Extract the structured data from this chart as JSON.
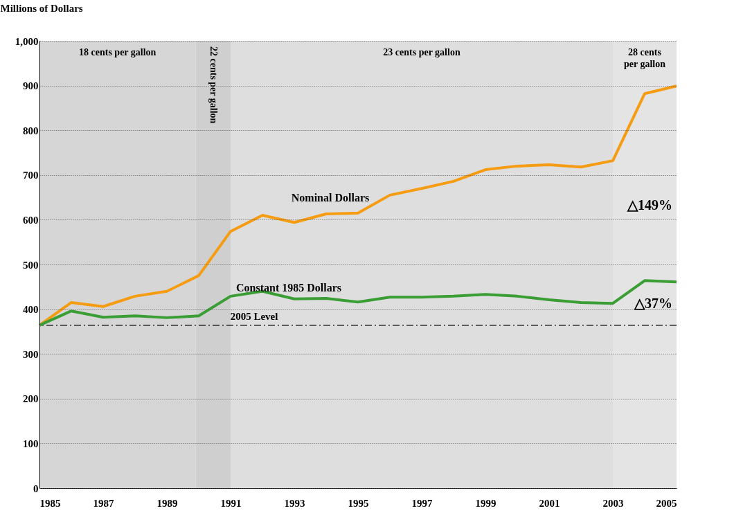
{
  "chart_data": {
    "type": "line",
    "ylabel": "Millions of Dollars",
    "x": [
      1985,
      1986,
      1987,
      1988,
      1989,
      1990,
      1991,
      1992,
      1993,
      1994,
      1995,
      1996,
      1997,
      1998,
      1999,
      2000,
      2001,
      2002,
      2003,
      2004,
      2005
    ],
    "series": [
      {
        "name": "Nominal Dollars",
        "color": "#f59c12",
        "values": [
          364,
          415,
          406,
          429,
          440,
          475,
          574,
          610,
          594,
          613,
          615,
          655,
          670,
          686,
          712,
          720,
          723,
          718,
          732,
          882,
          899
        ]
      },
      {
        "name": "Constant 1985 Dollars",
        "color": "#3a9e35",
        "values": [
          364,
          396,
          382,
          385,
          381,
          385,
          429,
          440,
          423,
          424,
          416,
          427,
          427,
          429,
          433,
          429,
          421,
          415,
          413,
          464,
          461
        ]
      }
    ],
    "xlim": [
      1985,
      2005
    ],
    "xticks": [
      1985,
      1987,
      1989,
      1991,
      1993,
      1995,
      1997,
      1999,
      2001,
      2003,
      2005
    ],
    "ylim": [
      0,
      1000
    ],
    "yticks": [
      0,
      100,
      200,
      300,
      400,
      500,
      600,
      700,
      800,
      900,
      {
        "value": 1000,
        "label": "1,000"
      }
    ],
    "grid": "y",
    "legend": false,
    "marker": "none",
    "line_style": "solid",
    "ref_lines": [
      {
        "axis": "y",
        "value": 364,
        "label": "2005 Level",
        "color": "#000000",
        "line_style": "dashdot"
      }
    ],
    "bands": [
      {
        "axis": "x",
        "from": 1985,
        "to": 1989.9,
        "label": "18 cents per gallon",
        "color": "#d6d6d6"
      },
      {
        "axis": "x",
        "from": 1989.9,
        "to": 1991,
        "label": "22 cents per gallon",
        "color": "#cfcfcf"
      },
      {
        "axis": "x",
        "from": 1991,
        "to": 2003,
        "label": "23 cents per gallon",
        "color": "#dedede"
      },
      {
        "axis": "x",
        "from": 2003,
        "to": 2005,
        "label": "28 cents per gallon",
        "color": "#e4e4e4"
      }
    ],
    "annotations": [
      {
        "text": "△149%",
        "x": 2005,
        "y": 632
      },
      {
        "text": "△37%",
        "x": 2005,
        "y": 412
      }
    ]
  }
}
